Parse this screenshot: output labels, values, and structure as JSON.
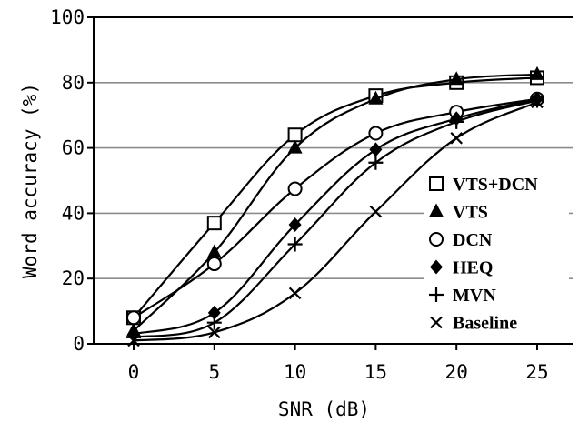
{
  "chart_data": {
    "type": "line",
    "xlabel": "SNR (dB)",
    "ylabel": "Word accuracy (%)",
    "xlim": [
      0,
      25
    ],
    "ylim": [
      0,
      100
    ],
    "x": [
      0,
      5,
      10,
      15,
      20,
      25
    ],
    "x_ticks": [
      "0",
      "5",
      "10",
      "15",
      "20",
      "25"
    ],
    "y_ticks": [
      "0",
      "20",
      "40",
      "60",
      "80",
      "100"
    ],
    "grid": "horizontal",
    "legend_position": "right",
    "series": [
      {
        "name": "VTS+DCN",
        "marker": "open-square",
        "values": [
          8,
          37,
          64,
          76,
          80,
          81.5
        ]
      },
      {
        "name": "VTS",
        "marker": "filled-triangle",
        "values": [
          4,
          28,
          60,
          75,
          81,
          82.5
        ]
      },
      {
        "name": "DCN",
        "marker": "open-circle",
        "values": [
          8,
          24.5,
          47.5,
          64.5,
          71,
          75
        ]
      },
      {
        "name": "HEQ",
        "marker": "filled-diamond",
        "values": [
          3,
          9.5,
          36.5,
          59.5,
          69,
          75
        ]
      },
      {
        "name": "MVN",
        "marker": "plus",
        "values": [
          2,
          6.5,
          30.5,
          55.5,
          68,
          74.5
        ]
      },
      {
        "name": "Baseline",
        "marker": "cross",
        "values": [
          1,
          3.5,
          15.5,
          40.5,
          63,
          74
        ]
      }
    ]
  }
}
